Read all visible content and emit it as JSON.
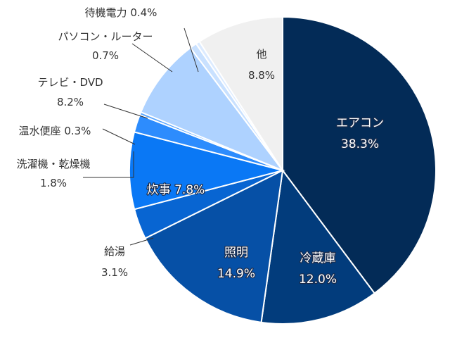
{
  "chart_data": {
    "type": "pie",
    "title": "",
    "start": "12 o'clock",
    "direction": "clockwise",
    "slices": [
      {
        "label": "エアコン",
        "value": 38.3,
        "value_label": "38.3%",
        "color": "#032b57",
        "label_pos": "inside"
      },
      {
        "label": "冷蔵庫",
        "value": 12.0,
        "value_label": "12.0%",
        "color": "#023c7c",
        "label_pos": "inside"
      },
      {
        "label": "照明",
        "value": 14.9,
        "value_label": "14.9%",
        "color": "#0650a6",
        "label_pos": "inside"
      },
      {
        "label": "給湯",
        "value": 3.1,
        "value_label": "3.1%",
        "color": "#0865d2",
        "label_pos": "outside"
      },
      {
        "label": "炊事",
        "value": 7.8,
        "value_label": "7.8%",
        "color": "#0a78f5",
        "label_pos": "inside"
      },
      {
        "label": "洗濯機・乾燥機",
        "value": 1.8,
        "value_label": "1.8%",
        "color": "#2d8cfd",
        "label_pos": "outside"
      },
      {
        "label": "温水便座",
        "value": 0.3,
        "value_label": "0.3%",
        "color": "#5aa6ff",
        "label_pos": "outside"
      },
      {
        "label": "テレビ・DVD",
        "value": 8.2,
        "value_label": "8.2%",
        "color": "#aed2ff",
        "label_pos": "outside"
      },
      {
        "label": "パソコン・ルーター",
        "value": 0.7,
        "value_label": "0.7%",
        "color": "#c9e1ff",
        "label_pos": "outside"
      },
      {
        "label": "待機電力",
        "value": 0.4,
        "value_label": "0.4%",
        "color": "#dcebff",
        "label_pos": "outside"
      },
      {
        "label": "他",
        "value": 8.8,
        "value_label": "8.8%",
        "color": "#f0f0f0",
        "label_pos": "inside"
      }
    ]
  }
}
